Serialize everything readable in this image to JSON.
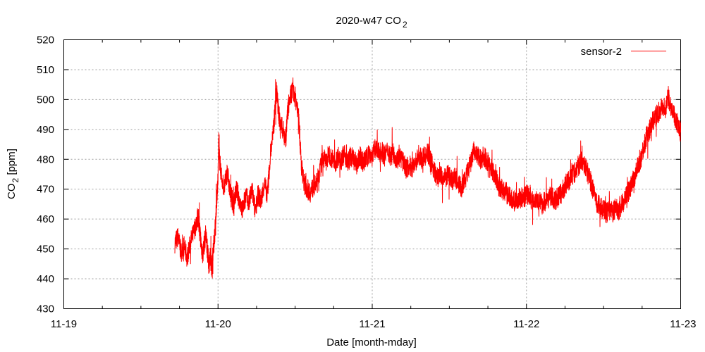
{
  "chart_data": {
    "type": "line",
    "title": {
      "main": "2020-w47 CO",
      "sub": "2"
    },
    "xlabel": "Date [month-mday]",
    "ylabel": {
      "main": "CO",
      "sub": "2",
      "rest": " [ppm]"
    },
    "x_ticks": [
      "11-19",
      "11-20",
      "11-21",
      "11-22",
      "11-23"
    ],
    "xlim": [
      0,
      4
    ],
    "ylim": [
      430,
      520
    ],
    "y_ticks": [
      430,
      440,
      450,
      460,
      470,
      480,
      490,
      500,
      510,
      520
    ],
    "grid": true,
    "legend_position": "top-right",
    "series": [
      {
        "name": "sensor-2",
        "color": "#ff0000",
        "points": [
          [
            0.72,
            452
          ],
          [
            0.74,
            454
          ],
          [
            0.76,
            449
          ],
          [
            0.78,
            451
          ],
          [
            0.8,
            447
          ],
          [
            0.82,
            452
          ],
          [
            0.84,
            455
          ],
          [
            0.86,
            459
          ],
          [
            0.87,
            461
          ],
          [
            0.88,
            457
          ],
          [
            0.89,
            452
          ],
          [
            0.9,
            448
          ],
          [
            0.92,
            455
          ],
          [
            0.93,
            450
          ],
          [
            0.94,
            445
          ],
          [
            0.95,
            447
          ],
          [
            0.96,
            444
          ],
          [
            0.97,
            450
          ],
          [
            0.98,
            456
          ],
          [
            0.99,
            465
          ],
          [
            1.0,
            474
          ],
          [
            1.005,
            486
          ],
          [
            1.01,
            480
          ],
          [
            1.02,
            475
          ],
          [
            1.04,
            470
          ],
          [
            1.06,
            476
          ],
          [
            1.08,
            468
          ],
          [
            1.1,
            465
          ],
          [
            1.12,
            470
          ],
          [
            1.14,
            466
          ],
          [
            1.16,
            463
          ],
          [
            1.18,
            468
          ],
          [
            1.2,
            465
          ],
          [
            1.22,
            470
          ],
          [
            1.24,
            463
          ],
          [
            1.26,
            468
          ],
          [
            1.28,
            466
          ],
          [
            1.3,
            472
          ],
          [
            1.32,
            468
          ],
          [
            1.34,
            482
          ],
          [
            1.36,
            490
          ],
          [
            1.37,
            497
          ],
          [
            1.38,
            503
          ],
          [
            1.39,
            497
          ],
          [
            1.4,
            493
          ],
          [
            1.42,
            490
          ],
          [
            1.44,
            487
          ],
          [
            1.45,
            495
          ],
          [
            1.46,
            499
          ],
          [
            1.48,
            503
          ],
          [
            1.5,
            501
          ],
          [
            1.52,
            496
          ],
          [
            1.53,
            488
          ],
          [
            1.54,
            478
          ],
          [
            1.56,
            472
          ],
          [
            1.58,
            470
          ],
          [
            1.6,
            469
          ],
          [
            1.62,
            471
          ],
          [
            1.64,
            472
          ],
          [
            1.66,
            476
          ],
          [
            1.68,
            481
          ],
          [
            1.7,
            479
          ],
          [
            1.72,
            482
          ],
          [
            1.74,
            480
          ],
          [
            1.76,
            479
          ],
          [
            1.78,
            481
          ],
          [
            1.8,
            480
          ],
          [
            1.82,
            482
          ],
          [
            1.84,
            479
          ],
          [
            1.86,
            481
          ],
          [
            1.88,
            480
          ],
          [
            1.9,
            478
          ],
          [
            1.92,
            481
          ],
          [
            1.94,
            479
          ],
          [
            1.96,
            480
          ],
          [
            1.98,
            482
          ],
          [
            2.0,
            481
          ],
          [
            2.02,
            484
          ],
          [
            2.04,
            482
          ],
          [
            2.06,
            483
          ],
          [
            2.08,
            481
          ],
          [
            2.1,
            483
          ],
          [
            2.12,
            481
          ],
          [
            2.14,
            482
          ],
          [
            2.16,
            480
          ],
          [
            2.18,
            481
          ],
          [
            2.2,
            479
          ],
          [
            2.22,
            477
          ],
          [
            2.24,
            478
          ],
          [
            2.26,
            477
          ],
          [
            2.28,
            479
          ],
          [
            2.3,
            481
          ],
          [
            2.32,
            480
          ],
          [
            2.34,
            481
          ],
          [
            2.36,
            482
          ],
          [
            2.38,
            480
          ],
          [
            2.4,
            476
          ],
          [
            2.42,
            474
          ],
          [
            2.44,
            475
          ],
          [
            2.46,
            473
          ],
          [
            2.48,
            474
          ],
          [
            2.5,
            475
          ],
          [
            2.52,
            473
          ],
          [
            2.54,
            474
          ],
          [
            2.56,
            472
          ],
          [
            2.58,
            470
          ],
          [
            2.6,
            473
          ],
          [
            2.62,
            476
          ],
          [
            2.64,
            479
          ],
          [
            2.66,
            483
          ],
          [
            2.68,
            481
          ],
          [
            2.7,
            480
          ],
          [
            2.72,
            481
          ],
          [
            2.74,
            480
          ],
          [
            2.76,
            478
          ],
          [
            2.78,
            476
          ],
          [
            2.8,
            474
          ],
          [
            2.82,
            471
          ],
          [
            2.84,
            470
          ],
          [
            2.86,
            469
          ],
          [
            2.88,
            468
          ],
          [
            2.9,
            467
          ],
          [
            2.92,
            466
          ],
          [
            2.94,
            467
          ],
          [
            2.96,
            467
          ],
          [
            2.98,
            467
          ],
          [
            3.0,
            468
          ],
          [
            3.02,
            468
          ],
          [
            3.04,
            466
          ],
          [
            3.06,
            467
          ],
          [
            3.08,
            466
          ],
          [
            3.1,
            465
          ],
          [
            3.12,
            466
          ],
          [
            3.14,
            467
          ],
          [
            3.16,
            468
          ],
          [
            3.18,
            466
          ],
          [
            3.2,
            467
          ],
          [
            3.22,
            468
          ],
          [
            3.24,
            470
          ],
          [
            3.26,
            472
          ],
          [
            3.28,
            473
          ],
          [
            3.3,
            475
          ],
          [
            3.32,
            476
          ],
          [
            3.34,
            478
          ],
          [
            3.36,
            480
          ],
          [
            3.38,
            478
          ],
          [
            3.4,
            475
          ],
          [
            3.42,
            472
          ],
          [
            3.44,
            468
          ],
          [
            3.46,
            465
          ],
          [
            3.48,
            464
          ],
          [
            3.5,
            463
          ],
          [
            3.52,
            462
          ],
          [
            3.54,
            463
          ],
          [
            3.56,
            462
          ],
          [
            3.58,
            464
          ],
          [
            3.6,
            463
          ],
          [
            3.62,
            465
          ],
          [
            3.64,
            467
          ],
          [
            3.66,
            469
          ],
          [
            3.68,
            471
          ],
          [
            3.7,
            474
          ],
          [
            3.72,
            477
          ],
          [
            3.74,
            480
          ],
          [
            3.76,
            484
          ],
          [
            3.78,
            488
          ],
          [
            3.8,
            490
          ],
          [
            3.82,
            493
          ],
          [
            3.84,
            495
          ],
          [
            3.86,
            496
          ],
          [
            3.88,
            498
          ],
          [
            3.9,
            497
          ],
          [
            3.92,
            501
          ],
          [
            3.94,
            497
          ],
          [
            3.96,
            494
          ],
          [
            3.98,
            492
          ],
          [
            4.0,
            489
          ]
        ]
      }
    ]
  }
}
